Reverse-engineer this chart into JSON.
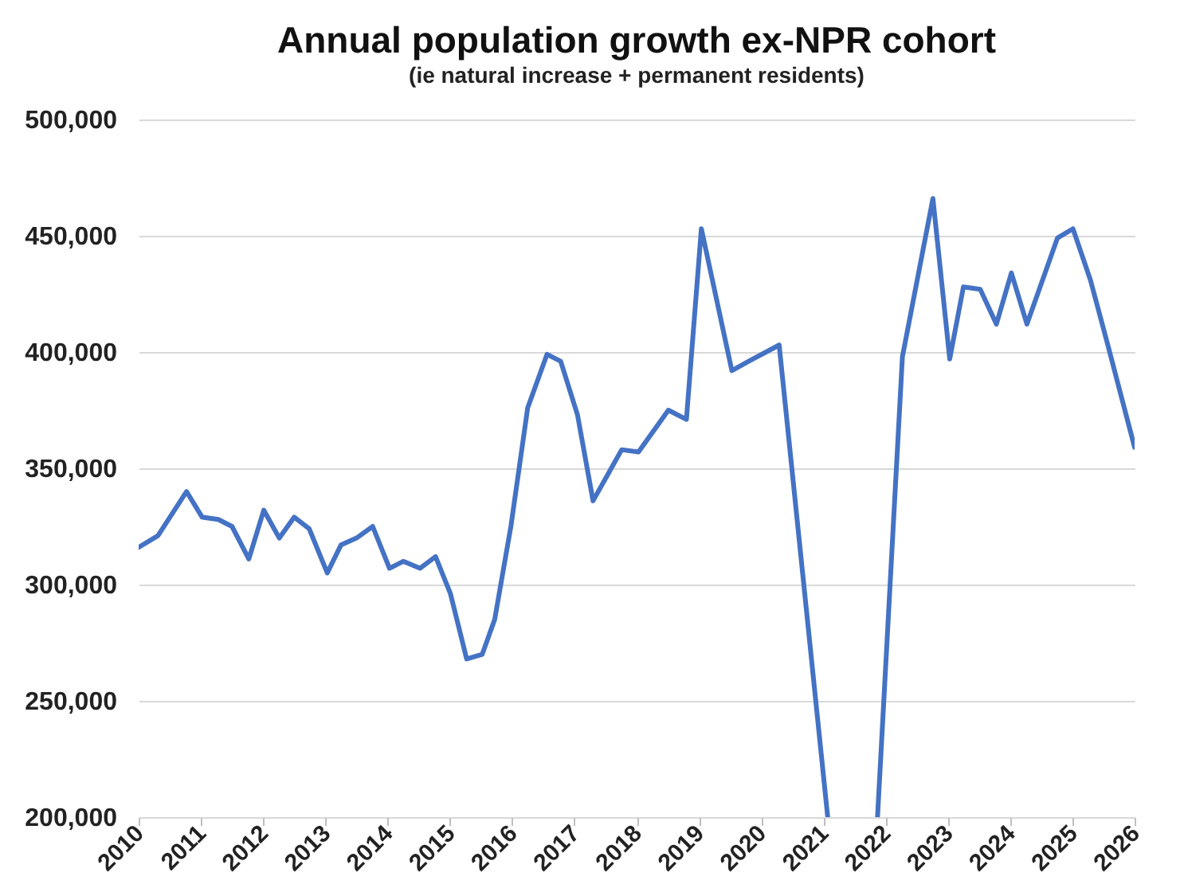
{
  "chart_data": {
    "type": "line",
    "title": "Annual population growth ex-NPR cohort",
    "subtitle": "(ie natural increase + permanent residents)",
    "x": [
      2010.0,
      2010.31,
      2010.77,
      2011.02,
      2011.28,
      2011.5,
      2011.77,
      2012.01,
      2012.26,
      2012.5,
      2012.74,
      2013.03,
      2013.25,
      2013.5,
      2013.76,
      2014.03,
      2014.25,
      2014.52,
      2014.77,
      2015.01,
      2015.27,
      2015.52,
      2015.72,
      2015.98,
      2016.25,
      2016.56,
      2016.78,
      2017.05,
      2017.3,
      2017.76,
      2018.03,
      2018.51,
      2018.8,
      2019.04,
      2019.53,
      2019.8,
      2020.29,
      2021.07,
      2021.47,
      2021.87,
      2022.27,
      2022.76,
      2023.03,
      2023.25,
      2023.52,
      2023.78,
      2024.02,
      2024.27,
      2024.76,
      2025.01,
      2025.29,
      2025.56,
      2026.0
    ],
    "series": [
      {
        "color": "#4472c4",
        "values": [
          316000,
          321000,
          340000,
          329000,
          328000,
          325000,
          311000,
          332000,
          320000,
          329000,
          324000,
          305000,
          317000,
          320000,
          325000,
          307000,
          310000,
          307000,
          312000,
          296000,
          268000,
          270000,
          285000,
          325000,
          376000,
          399000,
          396000,
          373000,
          336000,
          358000,
          357000,
          375000,
          371000,
          453000,
          392000,
          396000,
          403000,
          200000,
          null,
          200000,
          398000,
          466000,
          397000,
          428000,
          427000,
          412000,
          434000,
          412000,
          449000,
          453000,
          431000,
          404000,
          359000
        ]
      }
    ],
    "xlim": [
      2010,
      2026
    ],
    "xticks": [
      2010,
      2011,
      2012,
      2013,
      2014,
      2015,
      2016,
      2017,
      2018,
      2019,
      2020,
      2021,
      2022,
      2023,
      2024,
      2025,
      2026
    ],
    "ylim": [
      200000,
      500000
    ],
    "yticks": [
      {
        "value": 200000,
        "label": "200,000"
      },
      {
        "value": 250000,
        "label": "250,000"
      },
      {
        "value": 300000,
        "label": "300,000"
      },
      {
        "value": 350000,
        "label": "350,000"
      },
      {
        "value": 400000,
        "label": "400,000"
      },
      {
        "value": 450000,
        "label": "450,000"
      },
      {
        "value": 500000,
        "label": "500,000"
      }
    ],
    "grid": "y",
    "line_style": "solid",
    "marker": "none"
  }
}
